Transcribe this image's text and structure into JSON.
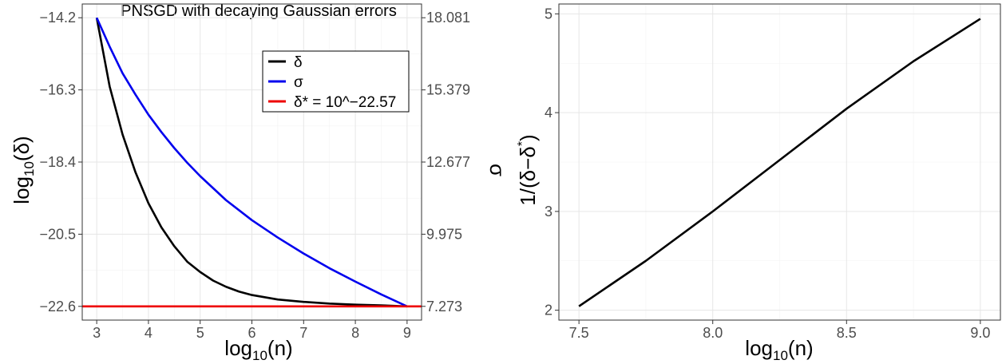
{
  "colors": {
    "delta": "#000000",
    "sigma": "#0000ee",
    "delta_star": "#ee0000",
    "grid": "#e6e6e6",
    "background": "#ffffff"
  },
  "chart_data": [
    {
      "type": "line",
      "title": "PNSGD with decaying Gaussian errors",
      "xlabel_base": "log",
      "xlabel_sub": "10",
      "xlabel_arg": "(n)",
      "ylabel_base": "log",
      "ylabel_sub": "10",
      "ylabel_arg": "(δ)",
      "y2label": "σ",
      "xlim": [
        2.72,
        9.28
      ],
      "ylim": [
        -23.0,
        -13.8
      ],
      "x_ticks": [
        3,
        4,
        5,
        6,
        7,
        8,
        9
      ],
      "x_tick_labels": [
        "3",
        "4",
        "5",
        "6",
        "7",
        "8",
        "9"
      ],
      "y_ticks": [
        -14.2,
        -16.3,
        -18.4,
        -20.5,
        -22.6
      ],
      "y_tick_labels": [
        "−14.2",
        "−16.3",
        "−18.4",
        "−20.5",
        "−22.6"
      ],
      "y2_tick_labels": [
        "18.081",
        "15.379",
        "12.677",
        "9.975",
        "7.273"
      ],
      "y2_ticks_values": [
        18.081,
        15.379,
        12.677,
        9.975,
        7.273
      ],
      "grid": true,
      "legend_position": "top-right",
      "series": [
        {
          "name": "δ",
          "axis": "left",
          "x": [
            3.0,
            3.25,
            3.5,
            3.75,
            4.0,
            4.25,
            4.5,
            4.75,
            5.0,
            5.25,
            5.5,
            5.75,
            6.0,
            6.5,
            7.0,
            7.5,
            8.0,
            8.5,
            9.0
          ],
          "y": [
            -14.2,
            -16.2,
            -17.6,
            -18.7,
            -19.6,
            -20.3,
            -20.85,
            -21.3,
            -21.6,
            -21.85,
            -22.03,
            -22.17,
            -22.27,
            -22.4,
            -22.47,
            -22.52,
            -22.55,
            -22.57,
            -22.6
          ]
        },
        {
          "name": "σ",
          "axis": "right",
          "x": [
            3.0,
            3.25,
            3.5,
            3.75,
            4.0,
            4.25,
            4.5,
            4.75,
            5.0,
            5.5,
            6.0,
            6.5,
            7.0,
            7.5,
            8.0,
            8.5,
            9.0
          ],
          "y": [
            18.081,
            17.0,
            16.0,
            15.2,
            14.45,
            13.8,
            13.2,
            12.65,
            12.15,
            11.25,
            10.5,
            9.85,
            9.25,
            8.7,
            8.2,
            7.72,
            7.273
          ]
        },
        {
          "name": "δ* = 10^−22.57",
          "axis": "left",
          "x": [
            2.72,
            9.28
          ],
          "y": [
            -22.6,
            -22.6
          ]
        }
      ]
    },
    {
      "type": "line",
      "title": "",
      "xlabel_base": "log",
      "xlabel_sub": "10",
      "xlabel_arg": "(n)",
      "ylabel_main": "1/(δ−δ",
      "ylabel_sup": "*",
      "ylabel_end": ")",
      "xlim": [
        7.425,
        9.075
      ],
      "ylim": [
        1.9,
        5.1
      ],
      "x_ticks": [
        7.5,
        8.0,
        8.5,
        9.0
      ],
      "x_tick_labels": [
        "7.5",
        "8.0",
        "8.5",
        "9.0"
      ],
      "y_ticks": [
        2,
        3,
        4,
        5
      ],
      "y_tick_labels": [
        "2",
        "3",
        "4",
        "5"
      ],
      "grid": true,
      "series": [
        {
          "x": [
            7.5,
            7.75,
            8.0,
            8.25,
            8.5,
            8.75,
            9.0
          ],
          "y": [
            2.04,
            2.5,
            3.0,
            3.52,
            4.04,
            4.52,
            4.95
          ]
        }
      ]
    }
  ]
}
